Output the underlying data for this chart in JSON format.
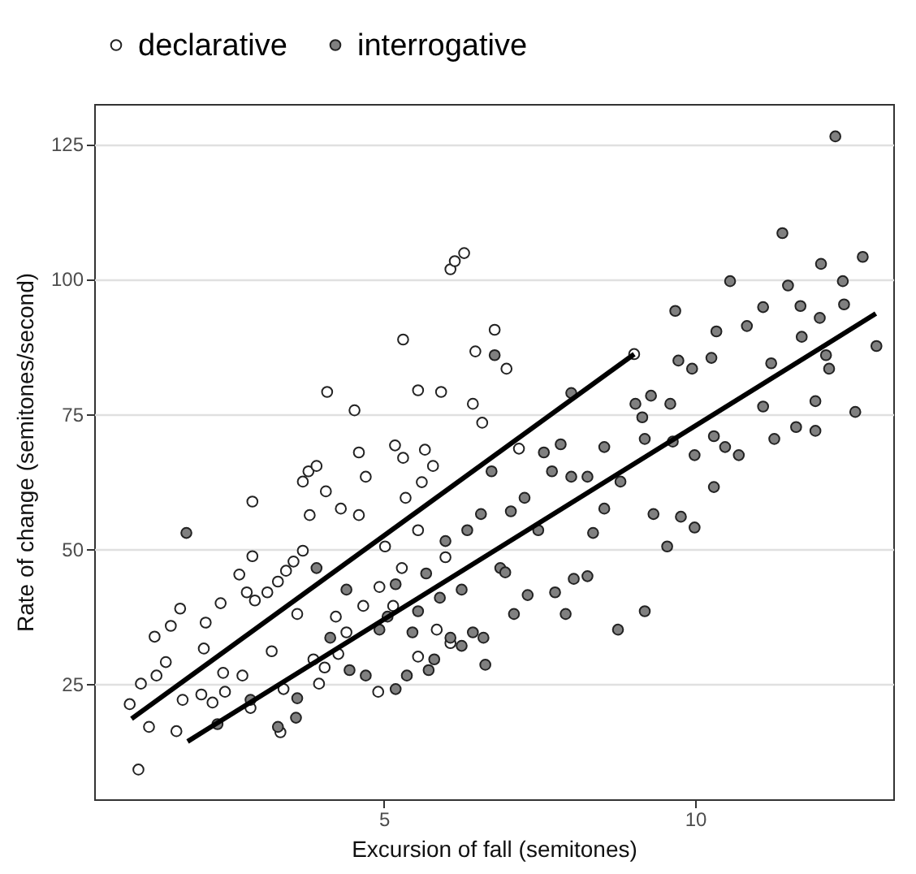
{
  "chart_data": {
    "type": "scatter",
    "xlabel": "Excursion of fall (semitones)",
    "ylabel": "Rate of change (semitones/second)",
    "xlim": [
      0.35,
      13.18
    ],
    "ylim": [
      3.7,
      132.4
    ],
    "xticks": [
      5,
      10
    ],
    "yticks": [
      25,
      50,
      75,
      100,
      125
    ],
    "grid": "y",
    "legend": "top",
    "marker": "circle",
    "series": [
      {
        "name": "declarative",
        "color": "#ffffff",
        "x": [
          1.06,
          0.92,
          1.1,
          1.23,
          1.35,
          1.5,
          1.32,
          1.58,
          1.73,
          1.67,
          1.77,
          2.07,
          2.11,
          2.14,
          2.38,
          2.25,
          2.45,
          2.42,
          2.68,
          2.89,
          2.89,
          2.8,
          2.93,
          2.73,
          2.86,
          3.13,
          3.3,
          3.43,
          3.55,
          3.7,
          3.39,
          3.34,
          3.7,
          3.79,
          3.92,
          3.81,
          4.07,
          4.09,
          4.53,
          4.6,
          4.71,
          4.31,
          4.6,
          4.23,
          3.96,
          4.05,
          4.4,
          4.67,
          4.91,
          5.18,
          5.31,
          5.31,
          5.35,
          5.55,
          5.66,
          5.61,
          5.92,
          5.79,
          6.07,
          6.14,
          6.29,
          6.47,
          6.78,
          6.43,
          6.58,
          6.97,
          7.17,
          9.02,
          5.02,
          5.29,
          4.93,
          5.55,
          5.99,
          6.07,
          5.55,
          3.61,
          3.2,
          3.87,
          5.85,
          5.15,
          4.27
        ],
        "values": [
          9.2,
          21.3,
          25.1,
          17.1,
          26.6,
          29.1,
          33.8,
          35.8,
          39.0,
          16.3,
          22.1,
          23.1,
          31.6,
          36.4,
          40.0,
          21.6,
          23.6,
          27.1,
          45.3,
          48.7,
          58.8,
          42.0,
          40.5,
          26.6,
          20.6,
          42.0,
          44.0,
          46.0,
          47.7,
          49.7,
          24.1,
          16.1,
          62.5,
          64.4,
          65.4,
          56.3,
          60.7,
          79.1,
          75.7,
          67.9,
          63.4,
          57.5,
          56.3,
          37.5,
          25.1,
          28.1,
          34.6,
          39.5,
          23.6,
          69.2,
          66.9,
          88.8,
          59.5,
          79.4,
          68.4,
          62.4,
          79.1,
          65.4,
          101.8,
          103.3,
          104.8,
          86.6,
          90.6,
          76.9,
          73.4,
          83.4,
          68.6,
          86.1,
          50.5,
          46.5,
          43.0,
          53.5,
          48.5,
          32.6,
          30.1,
          38.0,
          31.1,
          29.6,
          35.1,
          39.5,
          30.6
        ]
      },
      {
        "name": "interrogative",
        "color": "#808080",
        "x": [
          1.83,
          2.33,
          2.86,
          3.3,
          3.61,
          3.59,
          3.92,
          4.14,
          4.4,
          4.45,
          4.71,
          4.93,
          5.19,
          5.06,
          5.19,
          5.37,
          5.55,
          5.68,
          5.81,
          5.9,
          6.07,
          5.99,
          6.25,
          6.34,
          6.43,
          6.6,
          6.63,
          6.56,
          6.78,
          6.73,
          6.87,
          7.04,
          7.09,
          7.31,
          7.26,
          7.48,
          7.57,
          7.7,
          7.75,
          7.84,
          7.92,
          8.01,
          8.01,
          8.05,
          8.27,
          8.27,
          8.36,
          8.54,
          8.54,
          8.76,
          8.8,
          9.04,
          9.15,
          9.19,
          9.19,
          9.29,
          9.33,
          9.55,
          9.6,
          9.64,
          9.68,
          9.73,
          9.77,
          9.95,
          9.99,
          9.99,
          10.26,
          10.3,
          10.3,
          10.34,
          10.48,
          10.56,
          10.7,
          10.83,
          11.09,
          11.09,
          11.22,
          11.27,
          11.4,
          11.49,
          11.62,
          11.69,
          11.71,
          11.93,
          11.93,
          12.02,
          12.0,
          12.1,
          12.15,
          12.25,
          12.37,
          12.39,
          12.57,
          12.69,
          12.91,
          5.72,
          5.46,
          6.95,
          6.25
        ],
        "values": [
          53.0,
          17.6,
          22.1,
          17.1,
          22.4,
          18.8,
          46.5,
          33.6,
          42.5,
          27.6,
          26.6,
          35.1,
          24.1,
          37.5,
          43.5,
          26.6,
          38.5,
          45.5,
          29.6,
          41.0,
          33.6,
          51.5,
          42.5,
          53.5,
          34.6,
          33.6,
          28.6,
          56.5,
          85.9,
          64.4,
          46.5,
          57.0,
          38.0,
          41.5,
          59.5,
          53.5,
          67.9,
          64.4,
          42.0,
          69.4,
          38.0,
          78.9,
          63.4,
          44.5,
          63.4,
          45.0,
          53.0,
          68.9,
          57.5,
          35.1,
          62.5,
          76.9,
          74.4,
          70.4,
          38.5,
          78.4,
          56.5,
          50.5,
          76.9,
          69.9,
          94.1,
          84.9,
          56.0,
          83.4,
          67.4,
          54.0,
          85.4,
          70.9,
          61.5,
          90.3,
          68.9,
          99.6,
          67.4,
          91.3,
          94.8,
          76.4,
          84.4,
          70.4,
          108.5,
          98.8,
          72.6,
          95.0,
          89.3,
          77.4,
          71.9,
          102.8,
          92.8,
          85.9,
          83.4,
          126.4,
          99.6,
          95.3,
          75.4,
          104.1,
          87.6,
          27.6,
          34.6,
          45.7,
          32.1
        ]
      },
      {
        "type": "line",
        "color": "#000000",
        "line_style": "solid",
        "marker": "none",
        "x": [
          0.95,
          9.02
        ],
        "values": [
          18.6,
          86.1
        ]
      },
      {
        "type": "line",
        "color": "#000000",
        "line_style": "solid",
        "marker": "none",
        "x": [
          1.85,
          12.9
        ],
        "values": [
          14.4,
          93.6
        ]
      }
    ]
  }
}
